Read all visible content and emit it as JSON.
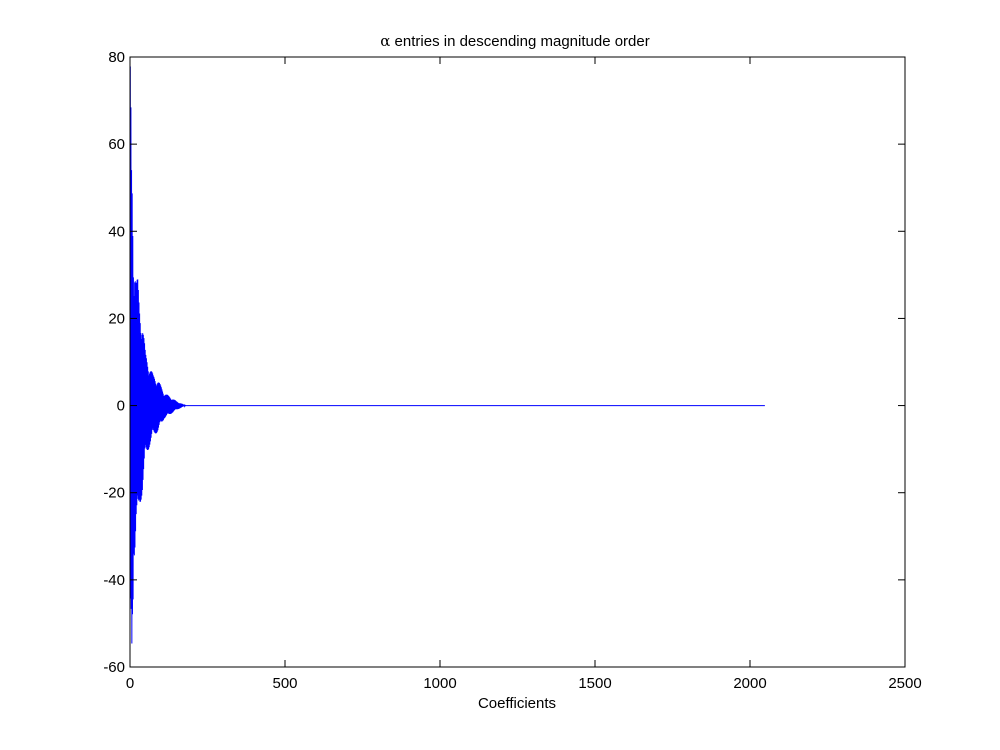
{
  "chart_data": {
    "type": "line",
    "title_symbol": "α",
    "title_text": " entries in descending magnitude order",
    "xlabel": "Coefficients",
    "ylabel": "",
    "xlim": [
      0,
      2500
    ],
    "ylim": [
      -60,
      80
    ],
    "xticks": [
      0,
      500,
      1000,
      1500,
      2000,
      2500
    ],
    "yticks": [
      -60,
      -40,
      -20,
      0,
      20,
      40,
      60,
      80
    ],
    "grid": false,
    "n_points": 2048,
    "line_color": "#0000ff",
    "key_points": [
      {
        "x": 1,
        "y": 78
      },
      {
        "x": 2,
        "y": -57
      },
      {
        "x": 3,
        "y": 70
      },
      {
        "x": 4,
        "y": -55
      },
      {
        "x": 6,
        "y": 60
      },
      {
        "x": 8,
        "y": -50
      },
      {
        "x": 10,
        "y": 45
      },
      {
        "x": 12,
        "y": -34
      },
      {
        "x": 15,
        "y": 35
      },
      {
        "x": 20,
        "y": -29
      },
      {
        "x": 25,
        "y": 29
      },
      {
        "x": 30,
        "y": -24
      },
      {
        "x": 40,
        "y": 20
      },
      {
        "x": 50,
        "y": -12
      },
      {
        "x": 60,
        "y": 10
      },
      {
        "x": 75,
        "y": -7
      },
      {
        "x": 90,
        "y": 6
      },
      {
        "x": 110,
        "y": -3
      },
      {
        "x": 130,
        "y": 2
      },
      {
        "x": 150,
        "y": -1
      },
      {
        "x": 180,
        "y": 0
      },
      {
        "x": 2048,
        "y": 0
      }
    ]
  }
}
